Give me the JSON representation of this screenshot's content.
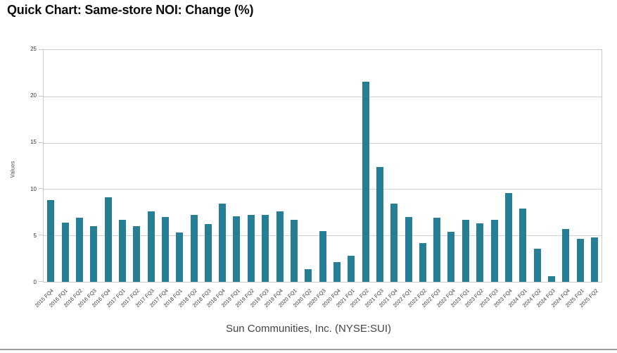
{
  "title": "Quick Chart: Same-store NOI: Change (%)",
  "subtitle": "Sun Communities, Inc. (NYSE:SUI)",
  "colors": {
    "bar": "#277f96",
    "grid": "#d2d2d2",
    "axis_border": "#cbcbcb",
    "title_text": "#0c0c0c",
    "subtitle_text": "#454545",
    "tick_text": "#3d3d3d"
  },
  "chart_data": {
    "type": "bar",
    "title": "Quick Chart: Same-store NOI: Change (%)",
    "xlabel": "Sun Communities, Inc. (NYSE:SUI)",
    "ylabel": "Values",
    "ylim": [
      0,
      25
    ],
    "yticks": [
      0,
      5,
      10,
      15,
      20,
      25
    ],
    "grid": true,
    "legend": "none",
    "bar_color": "#277f96",
    "categories": [
      "2015 FQ4",
      "2016 FQ1",
      "2016 FQ2",
      "2016 FQ3",
      "2016 FQ4",
      "2017 FQ1",
      "2017 FQ2",
      "2017 FQ3",
      "2017 FQ4",
      "2018 FQ1",
      "2018 FQ2",
      "2018 FQ3",
      "2018 FQ4",
      "2019 FQ1",
      "2019 FQ2",
      "2019 FQ3",
      "2019 FQ4",
      "2020 FQ1",
      "2020 FQ2",
      "2020 FQ3",
      "2020 FQ4",
      "2021 FQ1",
      "2021 FQ2",
      "2021 FQ3",
      "2021 FQ4",
      "2022 FQ1",
      "2022 FQ2",
      "2022 FQ3",
      "2022 FQ4",
      "2023 FQ1",
      "2023 FQ2",
      "2023 FQ3",
      "2023 FQ4",
      "2024 FQ1",
      "2024 FQ2",
      "2024 FQ3",
      "2024 FQ4",
      "2025 FQ1",
      "2025 FQ2"
    ],
    "values": [
      8.8,
      6.4,
      6.9,
      6.0,
      9.1,
      6.7,
      6.0,
      7.6,
      7.0,
      5.3,
      7.2,
      6.2,
      8.4,
      7.1,
      7.2,
      7.2,
      7.6,
      6.7,
      1.4,
      5.5,
      2.1,
      2.8,
      21.6,
      12.4,
      8.4,
      7.0,
      4.2,
      6.9,
      5.4,
      6.7,
      6.3,
      6.7,
      9.6,
      7.9,
      3.6,
      0.6,
      5.7,
      4.6,
      4.8
    ]
  }
}
